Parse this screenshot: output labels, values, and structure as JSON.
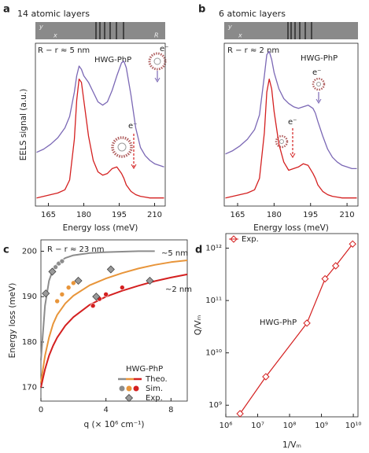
{
  "chart_data": [
    {
      "type": "line",
      "label": "a",
      "title": "14 atomic layers",
      "inset_labels": [
        "y",
        "x",
        "R"
      ],
      "xlabel": "Energy loss (meV)",
      "ylabel": "EELS signal (a.u.)",
      "xlim": [
        159.5,
        214.5
      ],
      "xticks": [
        165,
        180,
        195,
        210
      ],
      "ylim": [
        0,
        1
      ],
      "x": [
        160,
        163,
        166,
        169,
        172,
        174,
        176,
        177,
        178,
        179,
        180,
        182,
        184,
        186,
        188,
        190,
        192,
        194,
        196,
        197,
        198,
        200,
        202,
        204,
        206,
        208,
        210,
        212,
        214
      ],
      "series": [
        {
          "color": "#7b68b5",
          "values": [
            0.33,
            0.35,
            0.38,
            0.42,
            0.48,
            0.55,
            0.7,
            0.8,
            0.86,
            0.84,
            0.8,
            0.76,
            0.7,
            0.64,
            0.62,
            0.64,
            0.71,
            0.8,
            0.88,
            0.89,
            0.85,
            0.68,
            0.48,
            0.36,
            0.31,
            0.28,
            0.26,
            0.25,
            0.24
          ]
        },
        {
          "color": "#d42020",
          "values": [
            0.05,
            0.06,
            0.07,
            0.08,
            0.1,
            0.16,
            0.41,
            0.65,
            0.78,
            0.76,
            0.65,
            0.43,
            0.28,
            0.21,
            0.19,
            0.2,
            0.23,
            0.24,
            0.2,
            0.17,
            0.13,
            0.09,
            0.07,
            0.06,
            0.055,
            0.05,
            0.05,
            0.05,
            0.05
          ]
        }
      ],
      "annotations": [
        {
          "text": "R − r ≈ 5 nm",
          "color": "#222"
        },
        {
          "text": "HWG-PhP",
          "color": "#d42020"
        },
        {
          "text": "e⁻",
          "color": "#222"
        },
        {
          "text": "e⁻",
          "color": "#222"
        }
      ]
    },
    {
      "type": "line",
      "label": "b",
      "title": "6 atomic layers",
      "inset_labels": [
        "y",
        "x"
      ],
      "xlabel": "Energy loss (meV)",
      "xlim": [
        159.5,
        214.5
      ],
      "xticks": [
        165,
        180,
        195,
        210
      ],
      "ylim": [
        0,
        1
      ],
      "x": [
        160,
        163,
        166,
        169,
        172,
        174,
        176,
        177,
        178,
        179,
        180,
        182,
        184,
        186,
        188,
        190,
        192,
        194,
        196,
        197,
        198,
        200,
        202,
        204,
        206,
        208,
        210,
        212,
        214
      ],
      "series": [
        {
          "color": "#7b68b5",
          "values": [
            0.32,
            0.34,
            0.37,
            0.41,
            0.47,
            0.56,
            0.8,
            0.93,
            0.95,
            0.9,
            0.82,
            0.72,
            0.66,
            0.63,
            0.61,
            0.6,
            0.61,
            0.62,
            0.6,
            0.57,
            0.52,
            0.43,
            0.35,
            0.3,
            0.27,
            0.25,
            0.24,
            0.23,
            0.23
          ]
        },
        {
          "color": "#d42020",
          "values": [
            0.05,
            0.06,
            0.07,
            0.08,
            0.1,
            0.17,
            0.45,
            0.7,
            0.78,
            0.72,
            0.58,
            0.38,
            0.27,
            0.22,
            0.23,
            0.24,
            0.26,
            0.25,
            0.2,
            0.17,
            0.13,
            0.09,
            0.07,
            0.06,
            0.055,
            0.05,
            0.05,
            0.05,
            0.05
          ]
        }
      ],
      "annotations": [
        {
          "text": "R − r ≈ 2 nm",
          "color": "#222"
        },
        {
          "text": "HWG-PhP",
          "color": "#d42020"
        },
        {
          "text": "e⁻",
          "color": "#222"
        },
        {
          "text": "e⁻",
          "color": "#222"
        }
      ]
    },
    {
      "type": "combo",
      "label": "c",
      "xlabel": "q (× 10⁶ cm⁻¹)",
      "ylabel": "Energy loss (meV)",
      "xlim": [
        0,
        9
      ],
      "xticks": [
        0,
        4,
        8
      ],
      "ylim": [
        167,
        202.5
      ],
      "yticks": [
        170,
        180,
        190,
        200
      ],
      "legend_title": "HWG-PhP",
      "series": [
        {
          "name": "Theo.",
          "style": "line",
          "lines": [
            {
              "color": "#8c8c8c",
              "label": "R − r ≈ 23 nm",
              "x": [
                0,
                0.25,
                0.5,
                0.75,
                1,
                1.5,
                2,
                3,
                4,
                5,
                6,
                7
              ],
              "values": [
                176,
                188,
                193.5,
                196,
                197.3,
                198.5,
                199.1,
                199.6,
                199.8,
                199.9,
                200,
                200
              ]
            },
            {
              "color": "#e8953a",
              "label": "~5 nm",
              "x": [
                0,
                0.25,
                0.5,
                0.75,
                1,
                1.5,
                2,
                3,
                4,
                5,
                6,
                7,
                8,
                9
              ],
              "values": [
                171,
                177,
                181,
                184,
                186,
                188.5,
                190.2,
                192.5,
                194,
                195.2,
                196.2,
                197,
                197.6,
                198
              ]
            },
            {
              "color": "#d42020",
              "label": "~2 nm",
              "x": [
                0,
                0.25,
                0.5,
                0.75,
                1,
                1.5,
                2,
                3,
                4,
                5,
                6,
                7,
                8,
                9
              ],
              "values": [
                170,
                174,
                177,
                179.2,
                181,
                183.6,
                185.5,
                188.2,
                190,
                191.3,
                192.4,
                193.4,
                194.2,
                194.9
              ]
            }
          ]
        },
        {
          "name": "Sim.",
          "style": "ball",
          "groups": [
            {
              "color": "#8c8c8c",
              "x": [
                0.9,
                1.1,
                1.3
              ],
              "values": [
                196.5,
                197.3,
                197.8
              ]
            },
            {
              "color": "#e8953a",
              "x": [
                1.0,
                1.3,
                1.7,
                2.0
              ],
              "values": [
                189,
                190.5,
                192,
                193
              ]
            },
            {
              "color": "#d42020",
              "x": [
                3.2,
                3.6,
                4.0,
                5.0
              ],
              "values": [
                188,
                189.5,
                190.5,
                192
              ]
            }
          ]
        },
        {
          "name": "Exp.",
          "style": "diamond",
          "color": "#9a9a9a",
          "x": [
            0.3,
            0.7,
            2.3,
            4.3,
            3.4,
            6.7
          ],
          "values": [
            190.7,
            195.5,
            193.5,
            196,
            190,
            193.5
          ]
        }
      ]
    },
    {
      "type": "scatter",
      "label": "d",
      "xlabel": "1/Vₘ",
      "ylabel": "Q/Vₘ",
      "xscale": "log",
      "yscale": "log",
      "xlim": [
        1000000,
        14000000000
      ],
      "xticks": [
        {
          "value": 1000000,
          "label": "10⁶"
        },
        {
          "value": 10000000,
          "label": "10⁷"
        },
        {
          "value": 100000000,
          "label": "10⁸"
        },
        {
          "value": 1000000000,
          "label": "10⁹"
        },
        {
          "value": 10000000000,
          "label": "10¹⁰"
        }
      ],
      "ylim": [
        600000000,
        1900000000000
      ],
      "yticks": [
        {
          "value": 1000000000,
          "label": "10⁹"
        },
        {
          "value": 10000000000,
          "label": "10¹⁰"
        },
        {
          "value": 100000000000,
          "label": "10¹¹"
        },
        {
          "value": 1000000000000,
          "label": "10¹²"
        }
      ],
      "series": [
        {
          "name": "Exp.",
          "color": "#d42020",
          "marker": "diamond",
          "connect": true,
          "x": [
            2800000,
            18000000,
            350000000,
            1300000000,
            2800000000,
            9500000000
          ],
          "values": [
            690000000,
            3500000000,
            37000000000,
            260000000000,
            460000000000,
            1200000000000
          ]
        }
      ],
      "annotations": [
        {
          "text": "HWG-PhP",
          "color": "#d42020"
        }
      ]
    }
  ]
}
